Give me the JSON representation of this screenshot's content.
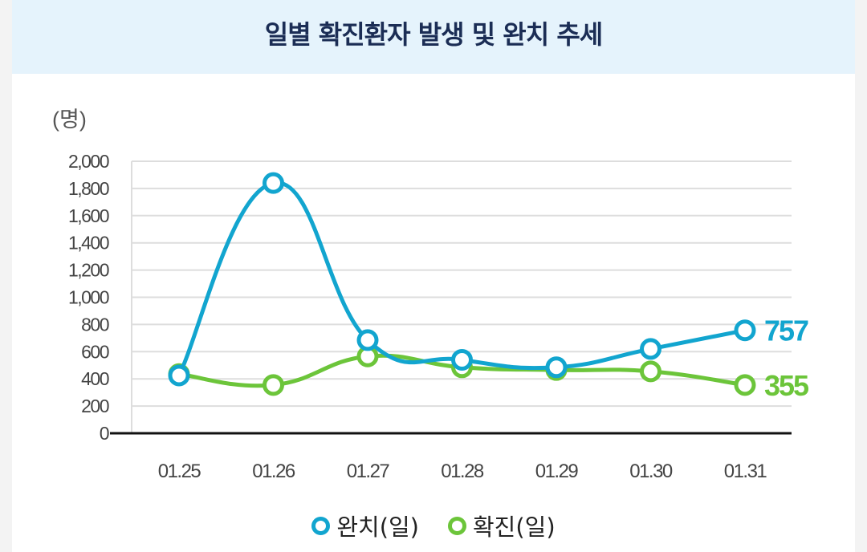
{
  "chart_data": {
    "type": "line",
    "title": "일별 확진환자 발생 및 완치 추세",
    "ylabel": "(명)",
    "xlabel": "",
    "categories": [
      "01.25",
      "01.26",
      "01.27",
      "01.28",
      "01.29",
      "01.30",
      "01.31"
    ],
    "yticks": [
      "0",
      "200",
      "400",
      "600",
      "800",
      "1,000",
      "1,200",
      "1,400",
      "1,600",
      "1,800",
      "2,000"
    ],
    "ylim": [
      0,
      2000
    ],
    "grid": true,
    "legend_position": "bottom-center",
    "series": [
      {
        "name": "완치(일)",
        "color": "#12a5cf",
        "values": [
          425,
          1840,
          685,
          540,
          485,
          620,
          757
        ],
        "end_label": "757"
      },
      {
        "name": "확진(일)",
        "color": "#6cc53a",
        "values": [
          435,
          355,
          565,
          485,
          465,
          455,
          355
        ],
        "end_label": "355"
      }
    ]
  }
}
